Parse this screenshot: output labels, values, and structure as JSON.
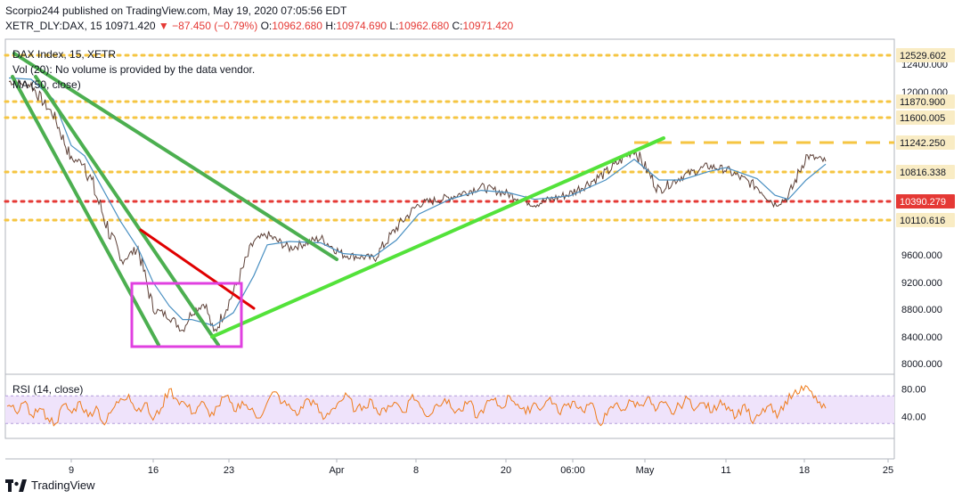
{
  "header": {
    "publisher_line": "Scorpio244 published on TradingView.com, May 19, 2020 07:05:56 EDT",
    "symbol_line": "XETR_DLY:DAX, 15",
    "last_price": "10971.420",
    "change_arrow": "▼",
    "change": "−87.450 (−0.79%)",
    "o_label": "O:",
    "o_value": "10962.680",
    "h_label": "H:",
    "h_value": "10974.690",
    "l_label": "L:",
    "l_value": "10962.680",
    "c_label": "C:",
    "c_value": "10971.420"
  },
  "legend": {
    "instrument": "DAX Index, 15, XETR",
    "volume_note": "Vol (20): No volume is provided by the data vendor.",
    "ma": "MA (50, close)",
    "rsi": "RSI (14, close)"
  },
  "footer": {
    "brand": "TradingView"
  },
  "colors": {
    "price_line": "#5d4037",
    "ma_line": "#4a90c2",
    "trendline_green": "#4caf50",
    "trendline_bright": "#53e23a",
    "trendline_red": "#e00000",
    "box_magenta": "#e040e0",
    "level_yellow": "#f5c542",
    "level_red": "#e53935",
    "rsi_line": "#ef7b1a",
    "rsi_band": "#efe3fb"
  },
  "chart_data": {
    "type": "line",
    "title": "DAX Index, 15, XETR",
    "x_tick_labels": [
      "9",
      "16",
      "23",
      "Apr",
      "8",
      "20",
      "06:00",
      "May",
      "11",
      "18",
      "25"
    ],
    "y_tick_labels": [
      "12400.000",
      "12000.000",
      "9600.000",
      "9200.000",
      "8800.000",
      "8400.000",
      "8000.000"
    ],
    "ylim": [
      7930,
      12600
    ],
    "price_anchor_series": {
      "name": "DAX 15m close (approx)",
      "x": [
        "Mar 2",
        "Mar 4",
        "Mar 6",
        "Mar 9",
        "Mar 10",
        "Mar 12",
        "Mar 13",
        "Mar 16",
        "Mar 17",
        "Mar 18",
        "Mar 19",
        "Mar 20",
        "Mar 23",
        "Mar 24",
        "Mar 25",
        "Mar 26",
        "Mar 27",
        "Mar 30",
        "Apr 1",
        "Apr 3",
        "Apr 6",
        "Apr 8",
        "Apr 14",
        "Apr 16",
        "Apr 20",
        "Apr 22",
        "Apr 24",
        "Apr 28",
        "Apr 30",
        "May 4",
        "May 6",
        "May 8",
        "May 11",
        "May 13",
        "May 14",
        "May 15",
        "May 18",
        "May 19"
      ],
      "values": [
        12150,
        12100,
        11650,
        11000,
        10950,
        9500,
        9700,
        8800,
        8700,
        8500,
        8750,
        8900,
        8440,
        9050,
        9800,
        9900,
        9700,
        9850,
        9600,
        9550,
        10000,
        10350,
        10450,
        10600,
        10500,
        10350,
        10500,
        10800,
        11150,
        10550,
        10750,
        10900,
        10850,
        10600,
        10350,
        10450,
        11050,
        10971
      ]
    },
    "ma_anchor_series": {
      "name": "MA (50, close)",
      "values": [
        12200,
        12180,
        11900,
        11200,
        11050,
        10100,
        9700,
        9200,
        8850,
        8650,
        8650,
        8600,
        8560,
        8750,
        9300,
        9750,
        9800,
        9780,
        9620,
        9580,
        9820,
        10200,
        10420,
        10550,
        10520,
        10420,
        10470,
        10700,
        11000,
        10700,
        10700,
        10820,
        10880,
        10720,
        10480,
        10420,
        10700,
        10930
      ]
    },
    "levels": [
      {
        "label": "12529.602",
        "value": 12529.602,
        "style": "dotted",
        "color": "#f5c542"
      },
      {
        "label": "11870.900",
        "value": 11870.9,
        "style": "dotted",
        "color": "#f5c542"
      },
      {
        "label": "11600.005",
        "value": 11600.005,
        "style": "dotted",
        "color": "#f5c542"
      },
      {
        "label": "11242.250",
        "value": 11242.25,
        "style": "dashed",
        "color": "#f5c542"
      },
      {
        "label": "10816.338",
        "value": 10816.338,
        "style": "dotted",
        "color": "#f5c542"
      },
      {
        "label": "10390.279",
        "value": 10390.279,
        "style": "dotted",
        "color": "#e53935"
      },
      {
        "label": "10110.616",
        "value": 10110.616,
        "style": "dotted",
        "color": "#f5c542"
      }
    ],
    "rsi": {
      "name": "RSI (14, close)",
      "y_tick_labels": [
        "80.00",
        "40.00"
      ],
      "band": [
        30,
        70
      ],
      "values": [
        55,
        48,
        60,
        42,
        52,
        38,
        30,
        58,
        45,
        62,
        40,
        55,
        28,
        50,
        66,
        72,
        48,
        60,
        35,
        52,
        80,
        64,
        58,
        45,
        62,
        40,
        55,
        70,
        48,
        62,
        50,
        38,
        58,
        76,
        60,
        52,
        44,
        66,
        58,
        36,
        50,
        62,
        70,
        48,
        55,
        64,
        42,
        56,
        60,
        46,
        72,
        54,
        40,
        58,
        66,
        50,
        48,
        62,
        38,
        56,
        64,
        52,
        70,
        58,
        44,
        60,
        52,
        68,
        46,
        56,
        62,
        48,
        60,
        30,
        42,
        58,
        50,
        62,
        56,
        68,
        48,
        60,
        44,
        56,
        66,
        52,
        60,
        46,
        64,
        54,
        40,
        58,
        30,
        44,
        56,
        38,
        62,
        72,
        84,
        78,
        60,
        52
      ]
    }
  }
}
